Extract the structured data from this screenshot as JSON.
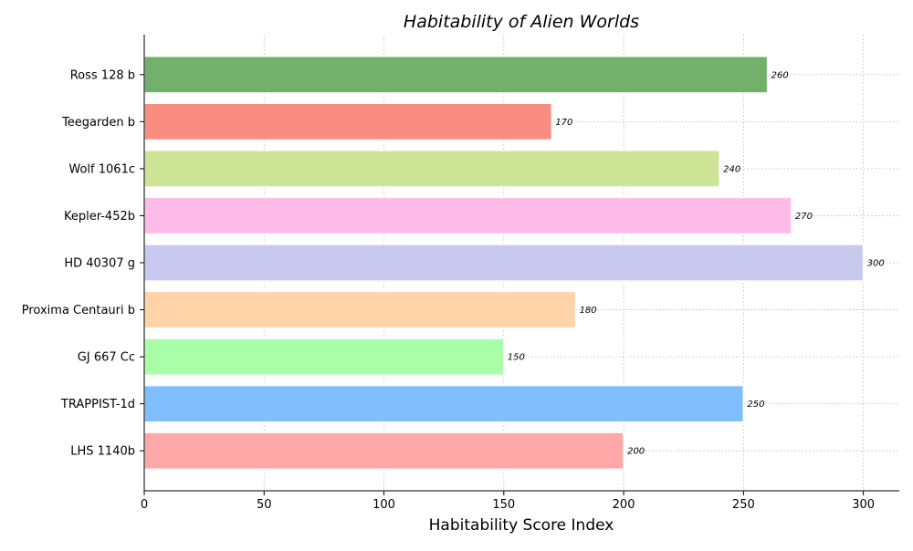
{
  "chart_data": {
    "type": "bar",
    "orientation": "horizontal",
    "title": "Habitability of Alien Worlds",
    "xlabel": "Habitability Score Index",
    "ylabel": "",
    "xlim": [
      0,
      315
    ],
    "xticks": [
      0,
      50,
      100,
      150,
      200,
      250,
      300
    ],
    "grid": true,
    "categories": [
      "LHS 1140b",
      "TRAPPIST-1d",
      "GJ 667 Cc",
      "Proxima Centauri b",
      "HD 40307 g",
      "Kepler-452b",
      "Wolf 1061c",
      "Teegarden b",
      "Ross 128 b"
    ],
    "values": [
      200,
      250,
      150,
      180,
      300,
      270,
      240,
      170,
      260
    ],
    "colors": [
      "#ffa8a8",
      "#80bfff",
      "#a8ffa8",
      "#ffd3a8",
      "#c9c9f0",
      "#ffbbe8",
      "#cee595",
      "#f98e80",
      "#72b06c"
    ]
  }
}
